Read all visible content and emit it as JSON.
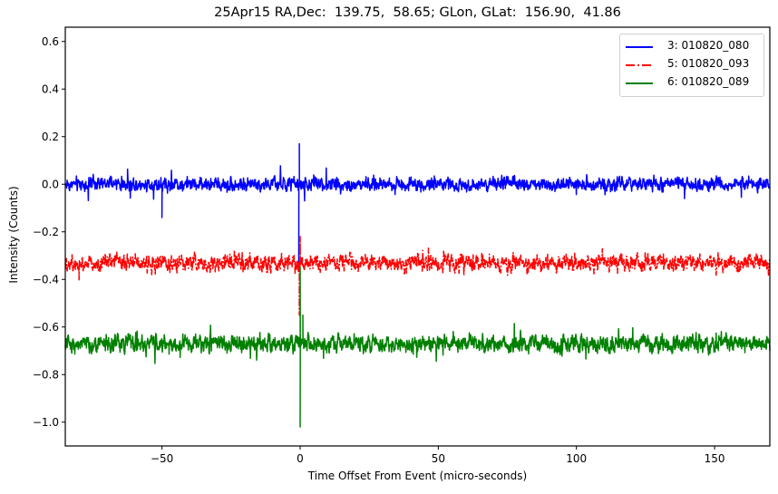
{
  "chart_data": {
    "type": "line",
    "title": "25Apr15 RA,Dec:  139.75,  58.65; GLon, GLat:  156.90,  41.86",
    "xlabel": "Time Offset From Event (micro-seconds)",
    "ylabel": "Intensity (Counts)",
    "xlim": [
      -85,
      170
    ],
    "ylim": [
      -1.1,
      0.66
    ],
    "xticks": [
      -50,
      0,
      50,
      100,
      150
    ],
    "xtick_labels": [
      "−50",
      "0",
      "50",
      "100",
      "150"
    ],
    "yticks": [
      0.6,
      0.4,
      0.2,
      0.0,
      -0.2,
      -0.4,
      -0.6,
      -0.8,
      -1.0
    ],
    "ytick_labels": [
      "0.6",
      "0.4",
      "0.2",
      "0.0",
      "−0.2",
      "−0.4",
      "−0.6",
      "−0.8",
      "−1.0"
    ],
    "grid": false,
    "legend_position": "upper right",
    "series": [
      {
        "name": "3: 010820_080",
        "color": "#0000ff",
        "linestyle": "solid",
        "baseline": 0.0,
        "noise_amplitude": 0.04,
        "features": [
          {
            "x": -50,
            "y": -0.14
          },
          {
            "x": -0.3,
            "y": 0.17
          },
          {
            "x": -0.5,
            "y": -0.35
          }
        ]
      },
      {
        "name": "5: 010820_093",
        "color": "#ff0000",
        "linestyle": "dashdot",
        "baseline": -0.33,
        "noise_amplitude": 0.05,
        "features": [
          {
            "x": 0.0,
            "y": -0.22
          },
          {
            "x": -0.3,
            "y": -0.55
          }
        ]
      },
      {
        "name": "6: 010820_089",
        "color": "#008000",
        "linestyle": "solid",
        "baseline": -0.67,
        "noise_amplitude": 0.05,
        "features": [
          {
            "x": 0.0,
            "y": -0.35
          },
          {
            "x": 0.0,
            "y": -1.02
          },
          {
            "x": 1.0,
            "y": -0.55
          }
        ]
      }
    ]
  },
  "legend": {
    "items": [
      {
        "label": "3: 010820_080",
        "color": "#0000ff",
        "style": "solid"
      },
      {
        "label": "5: 010820_093",
        "color": "#ff0000",
        "style": "dashdot"
      },
      {
        "label": "6: 010820_089",
        "color": "#008000",
        "style": "solid"
      }
    ]
  }
}
